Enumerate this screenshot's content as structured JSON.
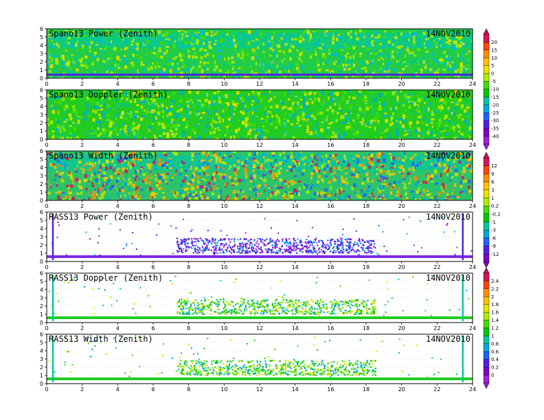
{
  "chart_data": [
    {
      "type": "heatmap",
      "title": "Spano13 Power (Zenith)",
      "date": "14NOV2010",
      "xlim": [
        0,
        24
      ],
      "ylim": [
        0,
        6
      ],
      "x_ticks": [
        0,
        2,
        4,
        6,
        8,
        10,
        12,
        14,
        16,
        18,
        20,
        22,
        24
      ],
      "y_ticks": [
        0,
        1,
        2,
        3,
        4,
        5,
        6
      ],
      "colorbar": "power",
      "pattern": "dense",
      "baseline": "#00b2d0"
    },
    {
      "type": "heatmap",
      "title": "Spano13 Doppler (Zenith)",
      "date": "14NOV2010",
      "xlim": [
        0,
        24
      ],
      "ylim": [
        0,
        6
      ],
      "x_ticks": [
        0,
        2,
        4,
        6,
        8,
        10,
        12,
        14,
        16,
        18,
        20,
        22,
        24
      ],
      "y_ticks": [
        0,
        1,
        2,
        3,
        4,
        5,
        6
      ],
      "colorbar": "power",
      "pattern": "dense-green",
      "baseline": ""
    },
    {
      "type": "heatmap",
      "title": "Spano13 Width (Zenith)",
      "date": "14NOV2010",
      "xlim": [
        0,
        24
      ],
      "ylim": [
        0,
        6
      ],
      "x_ticks": [
        0,
        2,
        4,
        6,
        8,
        10,
        12,
        14,
        16,
        18,
        20,
        22,
        24
      ],
      "y_ticks": [
        0,
        1,
        2,
        3,
        4,
        5,
        6
      ],
      "colorbar": "width",
      "pattern": "dense-mixed",
      "baseline": ""
    },
    {
      "type": "heatmap",
      "title": "RASS13 Power (Zenith)",
      "date": "14NOV2010",
      "xlim": [
        0,
        24
      ],
      "ylim": [
        0,
        6
      ],
      "x_ticks": [
        0,
        2,
        4,
        6,
        8,
        10,
        12,
        14,
        16,
        18,
        20,
        22,
        24
      ],
      "y_ticks": [
        0,
        1,
        2,
        3,
        4,
        5,
        6
      ],
      "colorbar": "width",
      "pattern": "sparse-purple",
      "baseline": "#7a2be0"
    },
    {
      "type": "heatmap",
      "title": "RASS13 Doppler (Zenith)",
      "date": "14NOV2010",
      "xlim": [
        0,
        24
      ],
      "ylim": [
        0,
        6
      ],
      "x_ticks": [
        0,
        2,
        4,
        6,
        8,
        10,
        12,
        14,
        16,
        18,
        20,
        22,
        24
      ],
      "y_ticks": [
        0,
        1,
        2,
        3,
        4,
        5,
        6
      ],
      "colorbar": "rass",
      "pattern": "sparse-green",
      "baseline": "#22cc22"
    },
    {
      "type": "heatmap",
      "title": "RASS13 Width (Zenith)",
      "date": "14NOV2010",
      "xlim": [
        0,
        24
      ],
      "ylim": [
        0,
        6
      ],
      "x_ticks": [
        0,
        2,
        4,
        6,
        8,
        10,
        12,
        14,
        16,
        18,
        20,
        22,
        24
      ],
      "y_ticks": [
        0,
        1,
        2,
        3,
        4,
        5,
        6
      ],
      "colorbar": "rass",
      "pattern": "sparse-green",
      "baseline": "#22cc22"
    }
  ],
  "colorbars": {
    "power": {
      "labels": [
        "20",
        "15",
        "10",
        "5",
        "0",
        "-5",
        "-10",
        "-15",
        "-20",
        "-25",
        "-30",
        "-35",
        "-40"
      ],
      "colors": [
        "#d4145a",
        "#ff4500",
        "#ff8c00",
        "#ffc000",
        "#e8e000",
        "#aaee00",
        "#44dd00",
        "#00c800",
        "#00c8a0",
        "#00a8e0",
        "#2060ff",
        "#5020e0",
        "#8000c8",
        "#a020e0"
      ]
    },
    "width": {
      "labels": [
        "12",
        "9",
        "6",
        "3",
        "1",
        "0.2",
        "-0.2",
        "-1",
        "-3",
        "-6",
        "-9",
        "-12"
      ],
      "colors": [
        "#d4145a",
        "#ff4500",
        "#ff8c00",
        "#ffc000",
        "#e8e000",
        "#aaee00",
        "#44dd00",
        "#00c800",
        "#00c8a0",
        "#00a8e0",
        "#2060ff",
        "#5020e0",
        "#8000c8"
      ]
    },
    "rass": {
      "labels": [
        "2.4",
        "2.2",
        "2",
        "1.8",
        "1.6",
        "1.4",
        "1.2",
        "1",
        "0.8",
        "0.6",
        "0.4",
        "0.2",
        "0"
      ],
      "colors": [
        "#d4145a",
        "#ff4500",
        "#ff8c00",
        "#ffc000",
        "#e8e000",
        "#aaee00",
        "#44dd00",
        "#00c800",
        "#00c8a0",
        "#00a8e0",
        "#2060ff",
        "#5020e0",
        "#8000c8",
        "#a020e0"
      ]
    }
  }
}
